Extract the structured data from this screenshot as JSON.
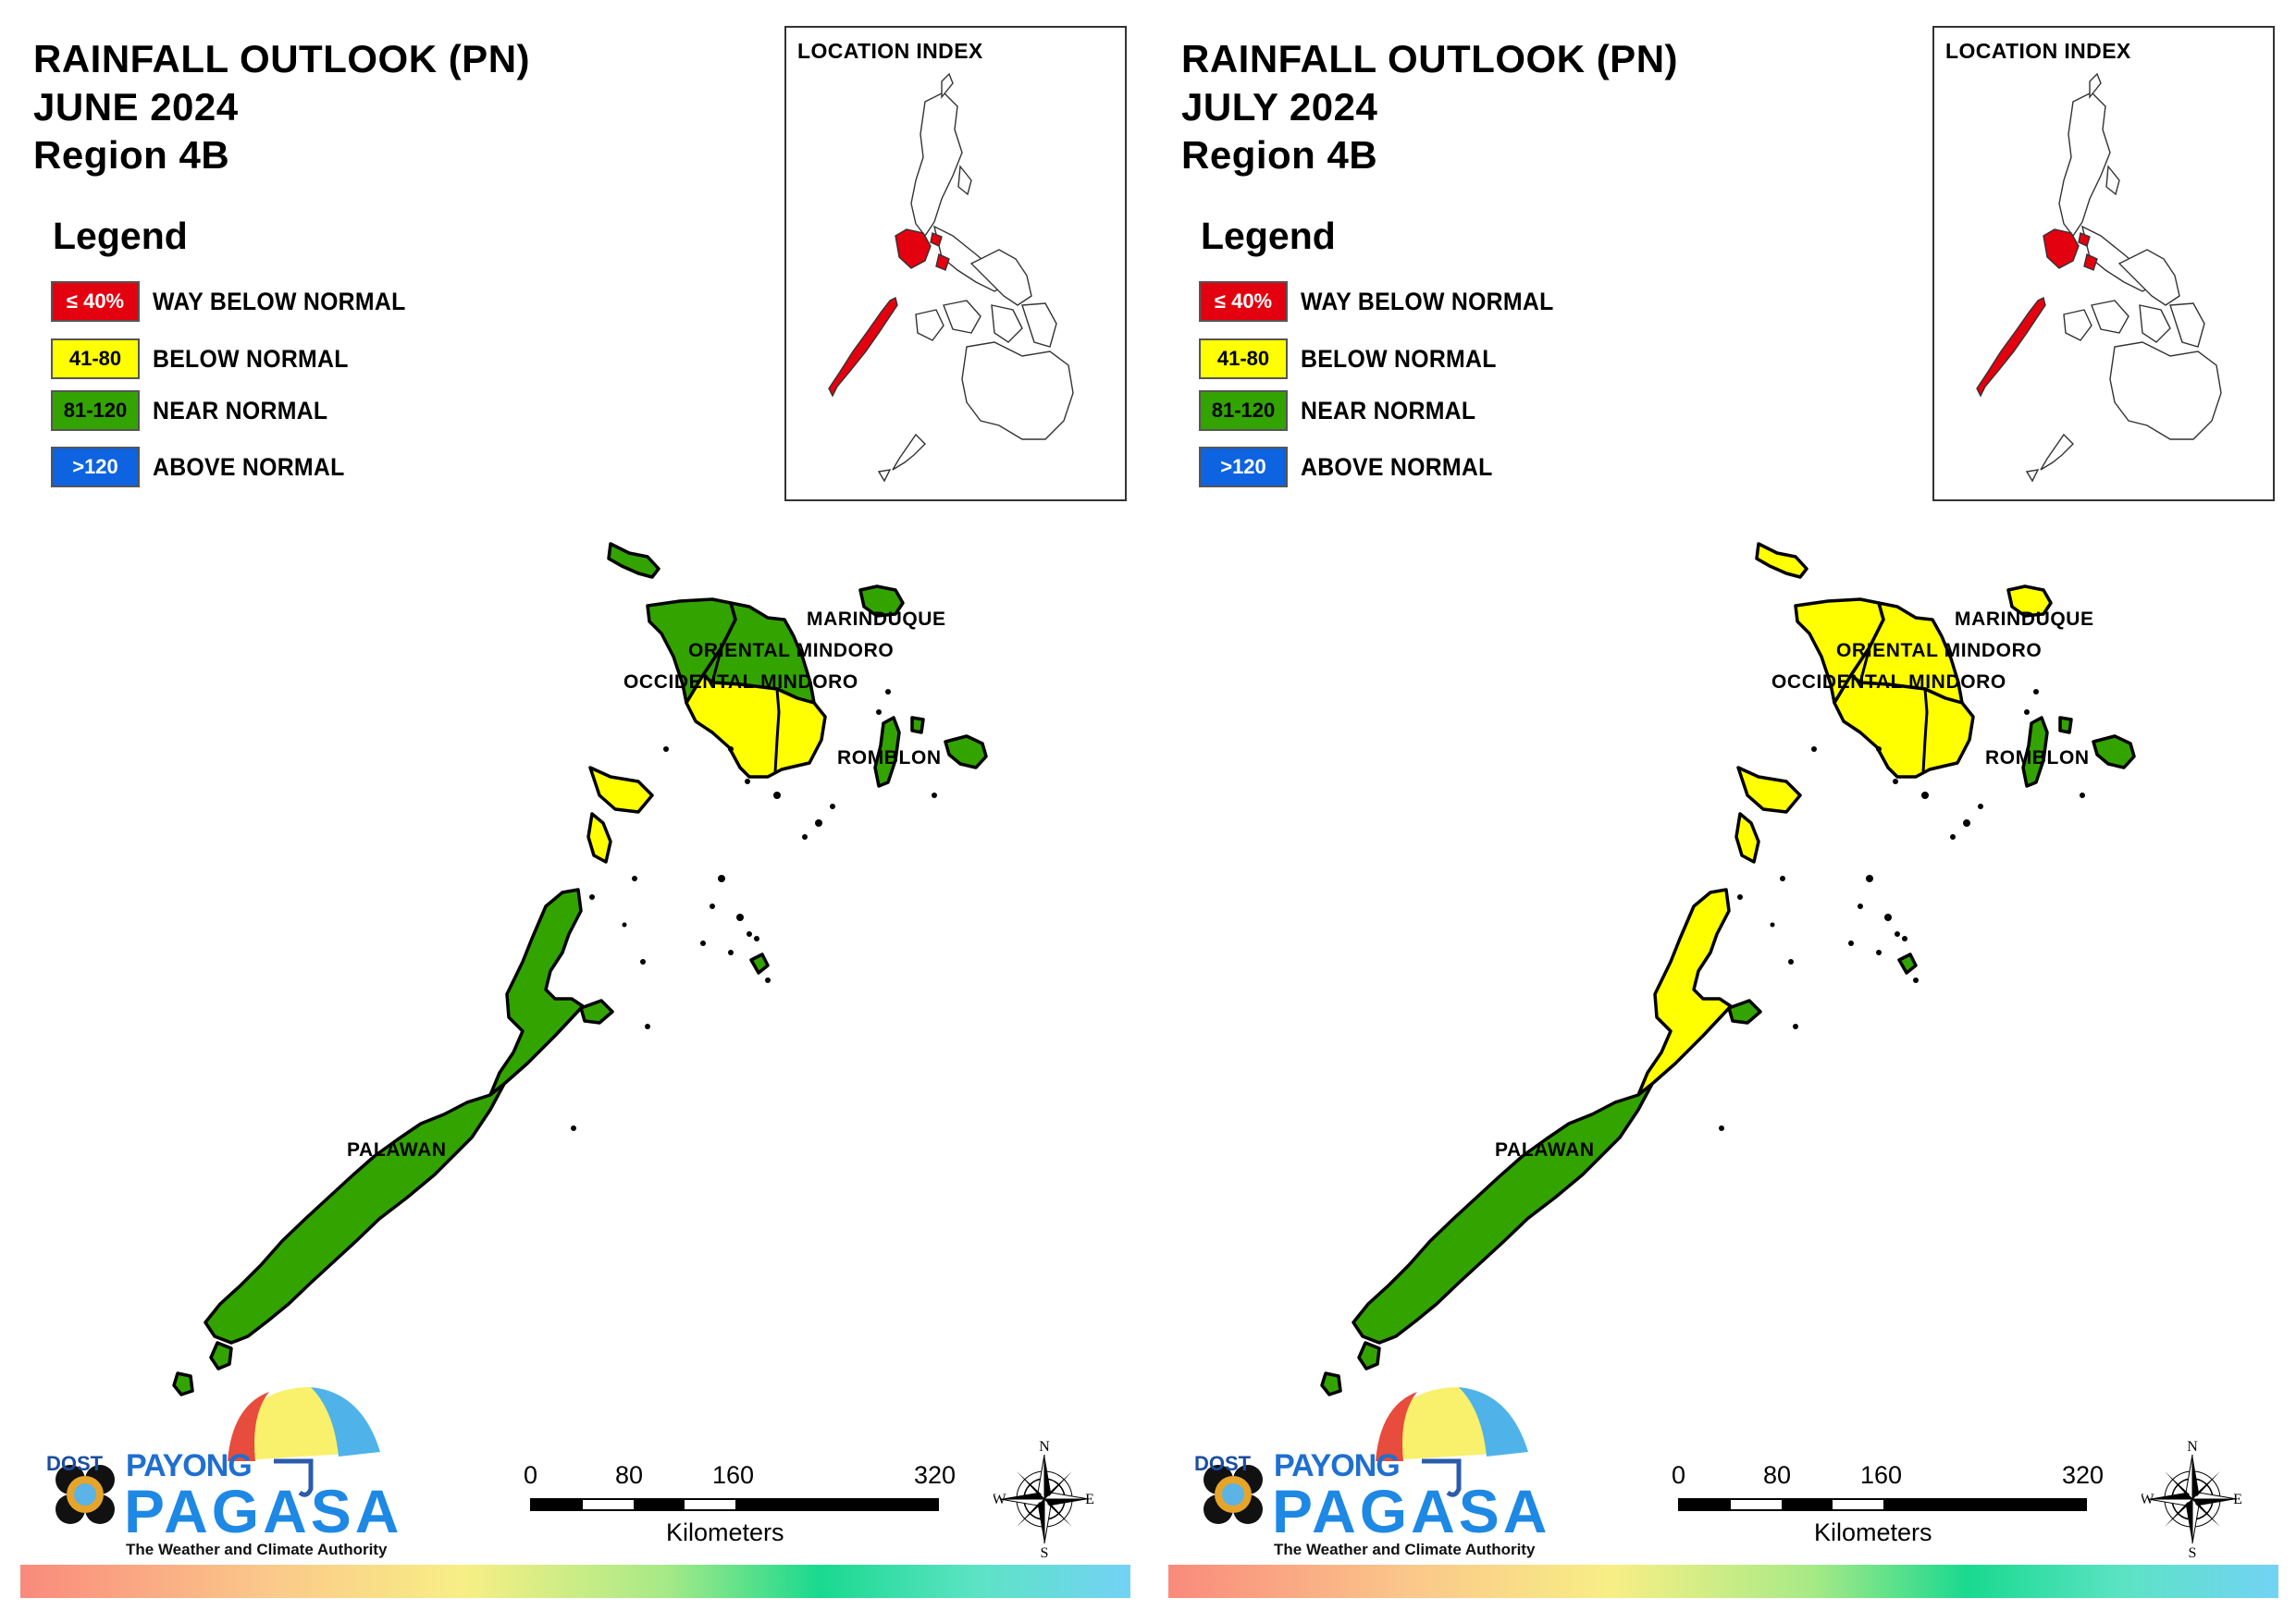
{
  "panels": [
    {
      "title_line1": "RAINFALL OUTLOOK (PN)",
      "title_line2": "JUNE 2024",
      "title_line3": "Region 4B",
      "provinces": {
        "palawan": "near_normal",
        "palawan_north": "near_normal",
        "occidental_mindoro": "near_normal",
        "oriental_mindoro_north": "near_normal",
        "mindoro_south": "below_normal",
        "marinduque": "near_normal",
        "romblon": "near_normal",
        "calamian": "below_normal"
      }
    },
    {
      "title_line1": "RAINFALL OUTLOOK (PN)",
      "title_line2": "JULY 2024",
      "title_line3": "Region 4B",
      "provinces": {
        "palawan": "near_normal",
        "palawan_north": "below_normal",
        "occidental_mindoro": "below_normal",
        "oriental_mindoro_north": "below_normal",
        "mindoro_south": "below_normal",
        "marinduque": "below_normal",
        "romblon": "near_normal",
        "calamian": "below_normal"
      }
    }
  ],
  "legend": {
    "title": "Legend",
    "items": [
      {
        "key": "way_below_normal",
        "range": "≤ 40%",
        "label": "WAY BELOW NORMAL",
        "color": "#e3000f",
        "text_color": "#ffffff"
      },
      {
        "key": "below_normal",
        "range": "41-80",
        "label": "BELOW NORMAL",
        "color": "#ffff00",
        "text_color": "#000000"
      },
      {
        "key": "near_normal",
        "range": "81-120",
        "label": "NEAR NORMAL",
        "color": "#33a300",
        "text_color": "#000000"
      },
      {
        "key": "above_normal",
        "range": ">120",
        "label": "ABOVE NORMAL",
        "color": "#0d63e0",
        "text_color": "#ffffff"
      }
    ]
  },
  "colors": {
    "near_normal": "#33a300",
    "below_normal": "#ffff00",
    "highlight": "#e3000f"
  },
  "location_index": {
    "title": "LOCATION INDEX"
  },
  "labels": {
    "marinduque": "MARINDUQUE",
    "oriental_mindoro": "ORIENTAL MINDORO",
    "occidental_mindoro": "OCCIDENTAL MINDORO",
    "romblon": "ROMBLON",
    "palawan": "PALAWAN"
  },
  "scale_bar": {
    "ticks": [
      "0",
      "80",
      "160",
      "320"
    ],
    "unit": "Kilometers"
  },
  "compass": {
    "n": "N",
    "s": "S",
    "e": "E",
    "w": "W"
  },
  "branding": {
    "dost": "DOST",
    "payong": "PAYONG",
    "pagasa": "PAGASA",
    "tagline": "The Weather and Climate Authority"
  }
}
